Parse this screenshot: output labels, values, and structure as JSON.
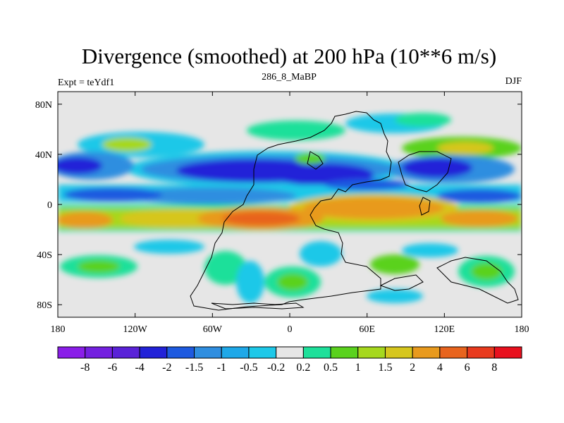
{
  "chart_data": {
    "type": "heatmap",
    "title": "Divergence (smoothed) at 200 hPa (10**6 m/s)",
    "subtitle_left": "Expt = teYdf1",
    "subtitle_center": "286_8_MaBP",
    "subtitle_right": "DJF",
    "projection": "cylindrical equidistant, paleogeography continental outlines",
    "xlim": [
      -180,
      180
    ],
    "ylim": [
      -90,
      90
    ],
    "x_ticks": [
      {
        "value": -180,
        "label": "180"
      },
      {
        "value": -120,
        "label": "120W"
      },
      {
        "value": -60,
        "label": "60W"
      },
      {
        "value": 0,
        "label": "0"
      },
      {
        "value": 60,
        "label": "60E"
      },
      {
        "value": 120,
        "label": "120E"
      },
      {
        "value": 180,
        "label": "180"
      }
    ],
    "y_ticks": [
      {
        "value": 80,
        "label": "80N"
      },
      {
        "value": 40,
        "label": "40N"
      },
      {
        "value": 0,
        "label": "0"
      },
      {
        "value": -40,
        "label": "40S"
      },
      {
        "value": -80,
        "label": "80S"
      }
    ],
    "colorbar": {
      "levels": [
        "-8",
        "-6",
        "-4",
        "-2",
        "-1.5",
        "-1",
        "-0.5",
        "-0.2",
        "0.2",
        "0.5",
        "1",
        "1.5",
        "2",
        "4",
        "6",
        "8"
      ],
      "colors": [
        "#8a1ee8",
        "#7420e0",
        "#5a22d8",
        "#2222d8",
        "#1e5ae0",
        "#2f8ee0",
        "#1ea8e8",
        "#1ec8e8",
        "#e6e6e6",
        "#1ee09a",
        "#5ad21e",
        "#a6d81e",
        "#d6c61e",
        "#e89a1e",
        "#e8641e",
        "#e83a1e",
        "#e8101e"
      ]
    },
    "field_bands": [
      {
        "lat_range": [
          50,
          80
        ],
        "dominant": "weak (-0.2 to 0.2), patches of 0.5 to 2"
      },
      {
        "lat_range": [
          20,
          45
        ],
        "dominant": "convergence -0.5 to -4"
      },
      {
        "lat_range": [
          -2,
          12
        ],
        "dominant": "convergence -1 to -2"
      },
      {
        "lat_range": [
          -25,
          -2
        ],
        "dominant": "divergence 1 to 6"
      },
      {
        "lat_range": [
          -70,
          -30
        ],
        "dominant": "mixed 0.5 to 2 and -0.5 to -1.5"
      }
    ]
  }
}
